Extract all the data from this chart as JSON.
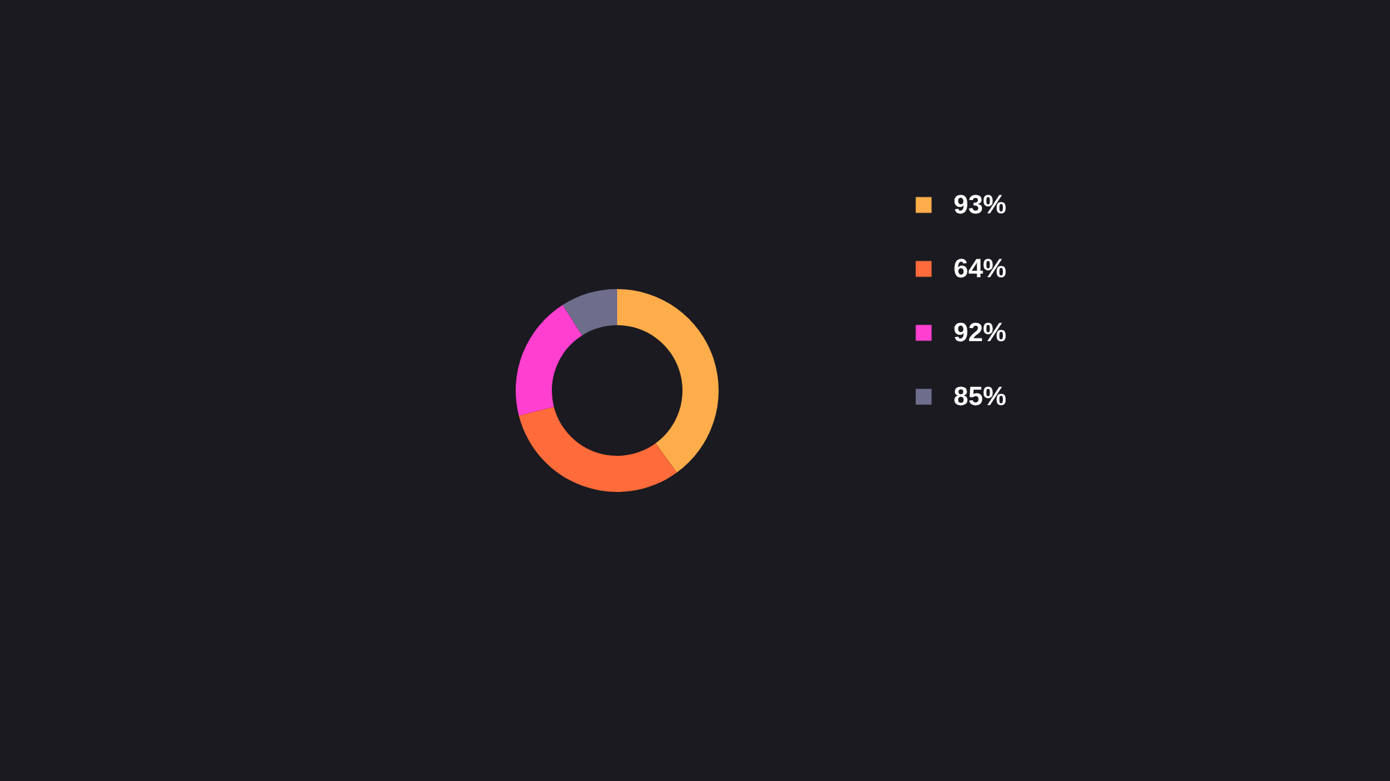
{
  "chart_data": {
    "type": "donut",
    "categories": [
      "93%",
      "64%",
      "92%",
      "85%"
    ],
    "values": [
      40,
      31,
      20,
      9
    ],
    "colors": [
      "#ffad4a",
      "#ff6b3a",
      "#ff3fcf",
      "#6e6d8c"
    ],
    "legend": "right"
  }
}
